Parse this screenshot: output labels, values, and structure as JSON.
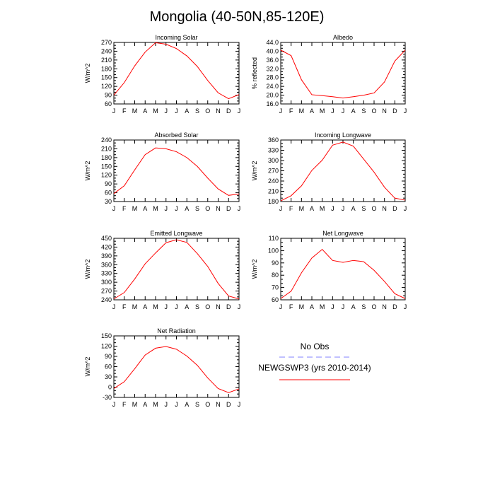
{
  "figure": {
    "title": "Mongolia (40-50N,85-120E)"
  },
  "legend": {
    "entries": [
      {
        "label": "No Obs",
        "color": "#8080ff",
        "style": "dashed"
      },
      {
        "label": "NEWGSWP3 (yrs 2010-2014)",
        "color": "#ff0000",
        "style": "solid"
      }
    ]
  },
  "chart_data": [
    {
      "type": "line",
      "title": "Incoming Solar",
      "xlabel": "",
      "ylabel": "W/m^2",
      "categories": [
        "J",
        "F",
        "M",
        "A",
        "M",
        "J",
        "J",
        "A",
        "S",
        "O",
        "N",
        "D",
        "J"
      ],
      "ylim": [
        60,
        270
      ],
      "yticks": [
        60,
        90,
        120,
        150,
        180,
        210,
        240,
        270
      ],
      "ytick_labels": [
        "60",
        "90",
        "120",
        "150",
        "180",
        "210",
        "240",
        "270"
      ],
      "series": [
        {
          "name": "NEWGSWP3 (yrs 2010-2014)",
          "color": "#ff0000",
          "values": [
            90,
            133,
            190,
            237,
            269,
            264,
            249,
            224,
            188,
            140,
            98,
            78,
            92
          ]
        }
      ]
    },
    {
      "type": "line",
      "title": "Albedo",
      "xlabel": "",
      "ylabel": "% reflected",
      "categories": [
        "J",
        "F",
        "M",
        "A",
        "M",
        "J",
        "J",
        "A",
        "S",
        "O",
        "N",
        "D",
        "J"
      ],
      "ylim": [
        16,
        44
      ],
      "yticks": [
        16,
        20,
        24,
        28,
        32,
        36,
        40,
        44
      ],
      "ytick_labels": [
        "16.0",
        "20.0",
        "24.0",
        "28.0",
        "32.0",
        "36.0",
        "40.0",
        "44.0"
      ],
      "series": [
        {
          "name": "NEWGSWP3 (yrs 2010-2014)",
          "color": "#ff0000",
          "values": [
            40.5,
            38,
            27,
            20.2,
            19.8,
            19.3,
            18.7,
            19.3,
            20,
            21,
            26,
            35.5,
            40.5
          ]
        }
      ]
    },
    {
      "type": "line",
      "title": "Absorbed Solar",
      "xlabel": "",
      "ylabel": "W/m^2",
      "categories": [
        "J",
        "F",
        "M",
        "A",
        "M",
        "J",
        "J",
        "A",
        "S",
        "O",
        "N",
        "D",
        "J"
      ],
      "ylim": [
        30,
        240
      ],
      "yticks": [
        30,
        60,
        90,
        120,
        150,
        180,
        210,
        240
      ],
      "ytick_labels": [
        "30",
        "60",
        "90",
        "120",
        "150",
        "180",
        "210",
        "240"
      ],
      "series": [
        {
          "name": "NEWGSWP3 (yrs 2010-2014)",
          "color": "#ff0000",
          "values": [
            57,
            84,
            138,
            190,
            213,
            210,
            200,
            180,
            150,
            110,
            73,
            51,
            56
          ]
        }
      ]
    },
    {
      "type": "line",
      "title": "Incoming Longwave",
      "xlabel": "",
      "ylabel": "W/m^2",
      "categories": [
        "J",
        "F",
        "M",
        "A",
        "M",
        "J",
        "J",
        "A",
        "S",
        "O",
        "N",
        "D",
        "J"
      ],
      "ylim": [
        180,
        360
      ],
      "yticks": [
        180,
        210,
        240,
        270,
        300,
        330,
        360
      ],
      "ytick_labels": [
        "180",
        "210",
        "240",
        "270",
        "300",
        "330",
        "360"
      ],
      "series": [
        {
          "name": "NEWGSWP3 (yrs 2010-2014)",
          "color": "#ff0000",
          "values": [
            182,
            197,
            226,
            271,
            301,
            345,
            354,
            342,
            304,
            266,
            222,
            190,
            184
          ]
        }
      ]
    },
    {
      "type": "line",
      "title": "Emitted Longwave",
      "xlabel": "",
      "ylabel": "W/m^2",
      "categories": [
        "J",
        "F",
        "M",
        "A",
        "M",
        "J",
        "J",
        "A",
        "S",
        "O",
        "N",
        "D",
        "J"
      ],
      "ylim": [
        240,
        450
      ],
      "yticks": [
        240,
        270,
        300,
        330,
        360,
        390,
        420,
        450
      ],
      "ytick_labels": [
        "240",
        "270",
        "300",
        "330",
        "360",
        "390",
        "420",
        "450"
      ],
      "series": [
        {
          "name": "NEWGSWP3 (yrs 2010-2014)",
          "color": "#ff0000",
          "values": [
            243,
            265,
            311,
            363,
            400,
            435,
            445,
            436,
            398,
            354,
            296,
            253,
            243
          ]
        }
      ]
    },
    {
      "type": "line",
      "title": "Net Longwave",
      "xlabel": "",
      "ylabel": "W/m^2",
      "categories": [
        "J",
        "F",
        "M",
        "A",
        "M",
        "J",
        "J",
        "A",
        "S",
        "O",
        "N",
        "D",
        "J"
      ],
      "ylim": [
        60,
        110
      ],
      "yticks": [
        60,
        70,
        80,
        90,
        100,
        110
      ],
      "ytick_labels": [
        "60",
        "70",
        "80",
        "90",
        "100",
        "110"
      ],
      "series": [
        {
          "name": "NEWGSWP3 (yrs 2010-2014)",
          "color": "#ff0000",
          "values": [
            61,
            67,
            82,
            94,
            101,
            92,
            90.5,
            92,
            91,
            84,
            75,
            65,
            61
          ]
        }
      ]
    },
    {
      "type": "line",
      "title": "Net Radiation",
      "xlabel": "",
      "ylabel": "W/m^2",
      "categories": [
        "J",
        "F",
        "M",
        "A",
        "M",
        "J",
        "J",
        "A",
        "S",
        "O",
        "N",
        "D",
        "J"
      ],
      "ylim": [
        -30,
        150
      ],
      "yticks": [
        -30,
        0,
        30,
        60,
        90,
        120,
        150
      ],
      "ytick_labels": [
        "-30",
        "0",
        "30",
        "60",
        "90",
        "120",
        "150"
      ],
      "series": [
        {
          "name": "NEWGSWP3 (yrs 2010-2014)",
          "color": "#ff0000",
          "values": [
            -4,
            16,
            54,
            94,
            114,
            119,
            111,
            91,
            64,
            27,
            -4,
            -16,
            -5
          ]
        }
      ]
    }
  ]
}
